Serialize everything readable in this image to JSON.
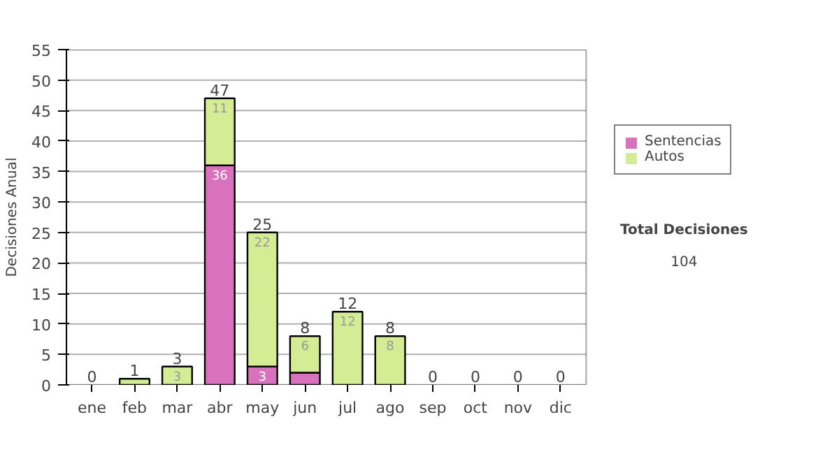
{
  "chart_data": {
    "type": "bar",
    "stacked": true,
    "ylabel": "Decisiones Anual",
    "categories": [
      "ene",
      "feb",
      "mar",
      "abr",
      "may",
      "jun",
      "jul",
      "ago",
      "sep",
      "oct",
      "nov",
      "dic"
    ],
    "series": [
      {
        "name": "Sentencias",
        "color": "#d872bd",
        "values": [
          0,
          0,
          0,
          36,
          3,
          2,
          0,
          0,
          0,
          0,
          0,
          0
        ],
        "value_labels": [
          null,
          null,
          null,
          "36",
          "3",
          null,
          null,
          null,
          null,
          null,
          null,
          null
        ]
      },
      {
        "name": "Autos",
        "color": "#d4ec94",
        "values": [
          0,
          1,
          3,
          11,
          22,
          6,
          12,
          8,
          0,
          0,
          0,
          0
        ],
        "value_labels": [
          null,
          null,
          "3",
          "11",
          "22",
          "6",
          "12",
          "8",
          null,
          null,
          null,
          null
        ]
      }
    ],
    "totals": [
      "0",
      "1",
      "3",
      "47",
      "25",
      "8",
      "12",
      "8",
      "0",
      "0",
      "0",
      "0"
    ],
    "ylim": [
      0,
      55
    ],
    "yticks": [
      0,
      5,
      10,
      15,
      20,
      25,
      30,
      35,
      40,
      45,
      50,
      55
    ],
    "grid": "y",
    "legend": "right",
    "annotations": [
      "Total Decisiones",
      "104"
    ]
  }
}
